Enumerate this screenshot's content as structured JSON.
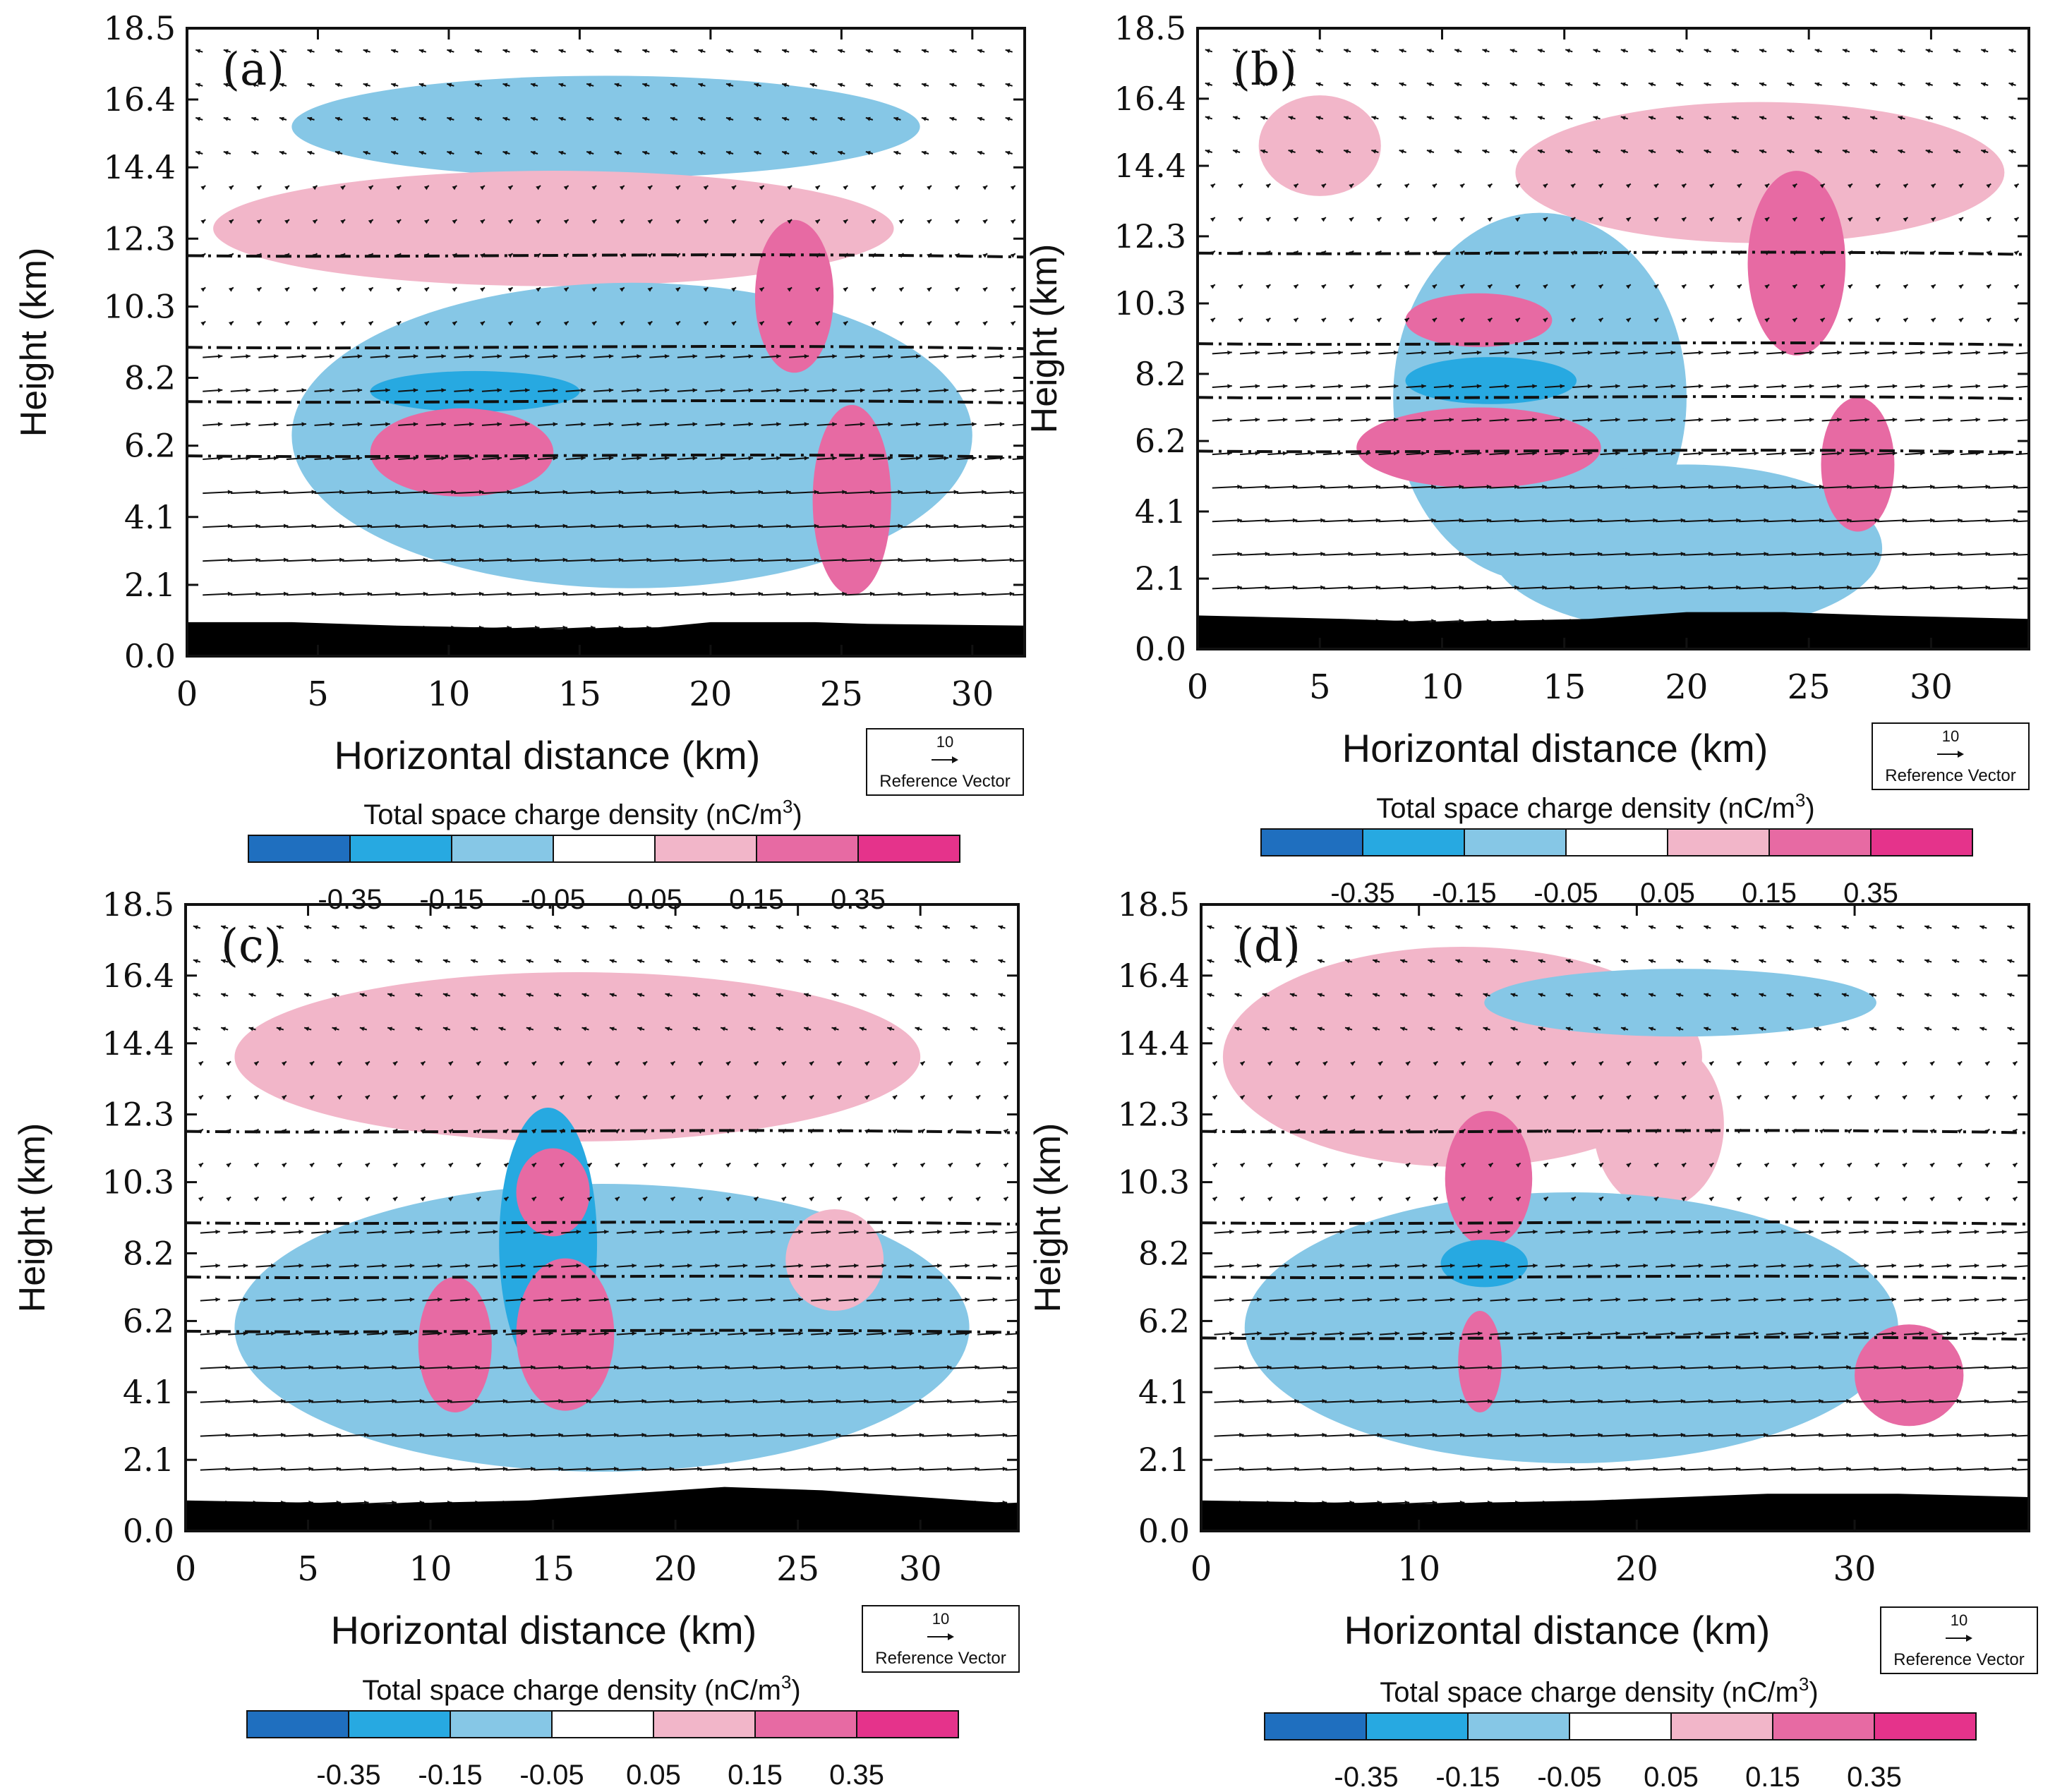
{
  "figure": {
    "colorbar": {
      "title": "Total space charge density  (nC/m",
      "title_sup": "3",
      "title_close": ")",
      "colors": [
        "#1f6fbf",
        "#27a9e1",
        "#86c7e6",
        "#ffffff",
        "#f2b6c9",
        "#e76aa3",
        "#e5338b"
      ],
      "tick_labels": [
        "-0.35",
        "-0.15",
        "-0.05",
        "0.05",
        "0.15",
        "0.35"
      ]
    },
    "reference_vector": {
      "magnitude": "10",
      "label": "Reference Vector"
    }
  },
  "chart_data": [
    {
      "type": "contour",
      "panel_label": "(a)",
      "xlabel": "Horizontal distance (km)",
      "ylabel": "Height (km)",
      "xlim": [
        0,
        32
      ],
      "ylim": [
        0,
        18.5
      ],
      "x_ticks": [
        0,
        5,
        10,
        15,
        20,
        25,
        30
      ],
      "y_ticks": [
        "0.0",
        "2.1",
        "4.1",
        "6.2",
        "8.2",
        "10.3",
        "12.3",
        "14.4",
        "16.4",
        "18.5"
      ],
      "isotherm_heights_km": [
        11.8,
        9.1,
        7.5,
        5.9
      ],
      "terrain_km": [
        [
          0,
          1.0
        ],
        [
          4,
          1.0
        ],
        [
          8,
          0.9
        ],
        [
          14,
          0.8
        ],
        [
          18,
          0.85
        ],
        [
          20,
          1.0
        ],
        [
          24,
          1.0
        ],
        [
          26,
          0.95
        ],
        [
          32,
          0.9
        ]
      ],
      "charge_regions": [
        {
          "polarity": "negative",
          "density": "-0.05",
          "x": 16,
          "y": 15.6,
          "w": 24,
          "h": 3.0
        },
        {
          "polarity": "positive",
          "density": "0.05",
          "x": 14,
          "y": 12.6,
          "w": 26,
          "h": 3.4
        },
        {
          "polarity": "negative",
          "density": "-0.05",
          "x": 17,
          "y": 6.5,
          "w": 26,
          "h": 9.0
        },
        {
          "polarity": "negative",
          "density": "-0.15",
          "x": 11,
          "y": 7.8,
          "w": 8,
          "h": 1.2
        },
        {
          "polarity": "positive",
          "density": "0.15",
          "x": 10.5,
          "y": 6.0,
          "w": 7,
          "h": 2.6
        },
        {
          "polarity": "positive",
          "density": "0.15",
          "x": 23.2,
          "y": 10.6,
          "w": 3,
          "h": 4.5
        },
        {
          "polarity": "positive",
          "density": "0.15",
          "x": 25.4,
          "y": 4.6,
          "w": 3,
          "h": 5.6
        }
      ]
    },
    {
      "type": "contour",
      "panel_label": "(b)",
      "xlabel": "Horizontal distance (km)",
      "ylabel": "Height (km)",
      "xlim": [
        0,
        34
      ],
      "ylim": [
        0,
        18.5
      ],
      "x_ticks": [
        0,
        5,
        10,
        15,
        20,
        25,
        30
      ],
      "y_ticks": [
        "0.0",
        "2.1",
        "4.1",
        "6.2",
        "8.2",
        "10.3",
        "12.3",
        "14.4",
        "16.4",
        "18.5"
      ],
      "isotherm_heights_km": [
        11.8,
        9.1,
        7.5,
        5.9
      ],
      "terrain_km": [
        [
          0,
          1.0
        ],
        [
          6,
          0.9
        ],
        [
          10,
          0.8
        ],
        [
          16,
          0.9
        ],
        [
          20,
          1.1
        ],
        [
          24,
          1.1
        ],
        [
          28,
          1.0
        ],
        [
          34,
          0.9
        ]
      ],
      "charge_regions": [
        {
          "polarity": "negative",
          "density": "-0.05",
          "x": 14,
          "y": 7.5,
          "w": 12,
          "h": 11.0
        },
        {
          "polarity": "negative",
          "density": "-0.05",
          "x": 20,
          "y": 3.0,
          "w": 16,
          "h": 5.0
        },
        {
          "polarity": "positive",
          "density": "0.05",
          "x": 23,
          "y": 14.2,
          "w": 20,
          "h": 4.2
        },
        {
          "polarity": "positive",
          "density": "0.05",
          "x": 5,
          "y": 15.0,
          "w": 5,
          "h": 3.0
        },
        {
          "polarity": "negative",
          "density": "-0.15",
          "x": 12,
          "y": 8.0,
          "w": 7,
          "h": 1.4
        },
        {
          "polarity": "positive",
          "density": "0.15",
          "x": 11.5,
          "y": 6.0,
          "w": 10,
          "h": 2.4
        },
        {
          "polarity": "positive",
          "density": "0.15",
          "x": 11.5,
          "y": 9.8,
          "w": 6,
          "h": 1.6
        },
        {
          "polarity": "positive",
          "density": "0.15",
          "x": 24.5,
          "y": 11.5,
          "w": 4,
          "h": 5.5
        },
        {
          "polarity": "positive",
          "density": "0.15",
          "x": 27,
          "y": 5.5,
          "w": 3,
          "h": 4.0
        }
      ]
    },
    {
      "type": "contour",
      "panel_label": "(c)",
      "xlabel": "Horizontal distance (km)",
      "ylabel": "Height (km)",
      "xlim": [
        0,
        34
      ],
      "ylim": [
        0,
        18.5
      ],
      "x_ticks": [
        0,
        5,
        10,
        15,
        20,
        25,
        30
      ],
      "y_ticks": [
        "0.0",
        "2.1",
        "4.1",
        "6.2",
        "8.2",
        "10.3",
        "12.3",
        "14.4",
        "16.4",
        "18.5"
      ],
      "isotherm_heights_km": [
        11.8,
        9.1,
        7.5,
        5.9
      ],
      "terrain_km": [
        [
          0,
          0.9
        ],
        [
          8,
          0.8
        ],
        [
          14,
          0.9
        ],
        [
          18,
          1.1
        ],
        [
          22,
          1.3
        ],
        [
          26,
          1.2
        ],
        [
          30,
          1.0
        ],
        [
          34,
          0.8
        ]
      ],
      "charge_regions": [
        {
          "polarity": "positive",
          "density": "0.05",
          "x": 16,
          "y": 14.0,
          "w": 28,
          "h": 5.0
        },
        {
          "polarity": "negative",
          "density": "-0.05",
          "x": 17,
          "y": 6.0,
          "w": 30,
          "h": 8.5
        },
        {
          "polarity": "negative",
          "density": "-0.15",
          "x": 14.8,
          "y": 8.5,
          "w": 4,
          "h": 8.0
        },
        {
          "polarity": "positive",
          "density": "0.15",
          "x": 15.0,
          "y": 10.0,
          "w": 3,
          "h": 2.6
        },
        {
          "polarity": "positive",
          "density": "0.15",
          "x": 11.0,
          "y": 5.5,
          "w": 3,
          "h": 4.0
        },
        {
          "polarity": "positive",
          "density": "0.15",
          "x": 15.5,
          "y": 5.8,
          "w": 4,
          "h": 4.5
        },
        {
          "polarity": "positive",
          "density": "0.05",
          "x": 26.5,
          "y": 8.0,
          "w": 4,
          "h": 3.0
        }
      ]
    },
    {
      "type": "contour",
      "panel_label": "(d)",
      "xlabel": "Horizontal distance (km)",
      "ylabel": "Height (km)",
      "xlim": [
        0,
        38
      ],
      "ylim": [
        0,
        18.5
      ],
      "x_ticks": [
        0,
        10,
        20,
        30
      ],
      "y_ticks": [
        "0.0",
        "2.1",
        "4.1",
        "6.2",
        "8.2",
        "10.3",
        "12.3",
        "14.4",
        "16.4",
        "18.5"
      ],
      "isotherm_heights_km": [
        11.8,
        9.1,
        7.5,
        5.7
      ],
      "terrain_km": [
        [
          0,
          0.9
        ],
        [
          10,
          0.8
        ],
        [
          18,
          0.9
        ],
        [
          26,
          1.1
        ],
        [
          32,
          1.1
        ],
        [
          38,
          1.0
        ]
      ],
      "charge_regions": [
        {
          "polarity": "positive",
          "density": "0.05",
          "x": 12,
          "y": 14.0,
          "w": 22,
          "h": 6.5
        },
        {
          "polarity": "positive",
          "density": "0.05",
          "x": 21,
          "y": 12.0,
          "w": 6,
          "h": 5.0
        },
        {
          "polarity": "negative",
          "density": "-0.05",
          "x": 17,
          "y": 6.0,
          "w": 30,
          "h": 8.0
        },
        {
          "polarity": "negative",
          "density": "-0.05",
          "x": 22,
          "y": 15.6,
          "w": 18,
          "h": 2.0
        },
        {
          "polarity": "positive",
          "density": "0.15",
          "x": 13.2,
          "y": 10.4,
          "w": 4,
          "h": 4.0
        },
        {
          "polarity": "negative",
          "density": "-0.15",
          "x": 13.0,
          "y": 7.9,
          "w": 4,
          "h": 1.4
        },
        {
          "polarity": "positive",
          "density": "0.15",
          "x": 12.8,
          "y": 5.0,
          "w": 2,
          "h": 3.0
        },
        {
          "polarity": "positive",
          "density": "0.15",
          "x": 32.5,
          "y": 4.6,
          "w": 5,
          "h": 3.0
        }
      ]
    }
  ]
}
